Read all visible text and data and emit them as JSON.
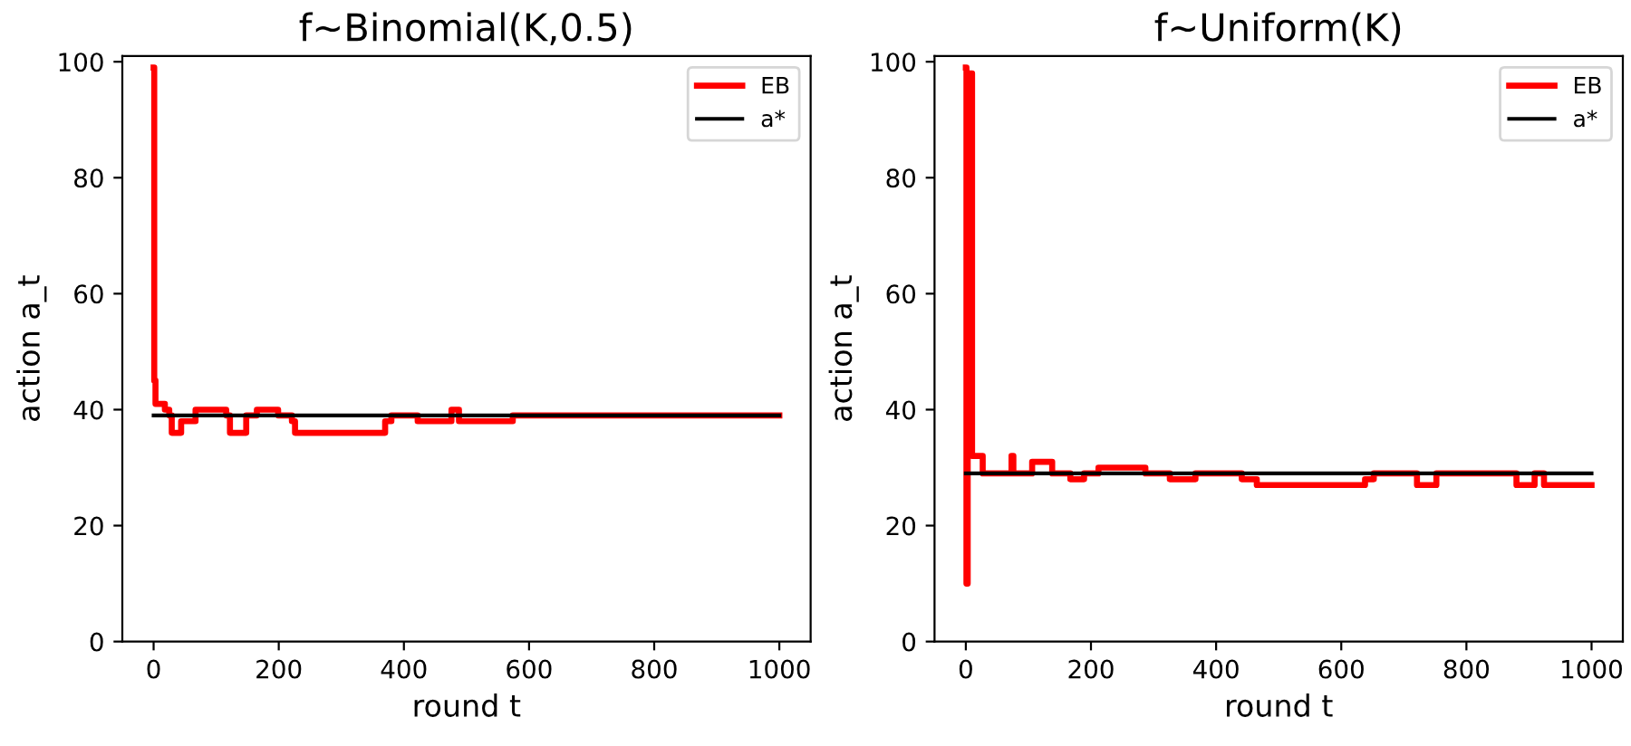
{
  "chart_data": [
    {
      "type": "step",
      "title": "f~Binomial(K,0.5)",
      "xlabel": "round t",
      "ylabel": "action a_t",
      "xlim": [
        -50,
        1050
      ],
      "ylim": [
        0,
        101
      ],
      "xticks": [
        0,
        200,
        400,
        600,
        800,
        1000
      ],
      "yticks": [
        0,
        20,
        40,
        60,
        80,
        100
      ],
      "legend": "top right",
      "grid": false,
      "series": [
        {
          "name": "EB",
          "color": "#ff0000",
          "x": [
            0,
            1,
            3,
            18,
            25,
            29,
            44,
            67,
            116,
            122,
            148,
            165,
            199,
            221,
            226,
            370,
            380,
            422,
            476,
            488,
            574,
            1000
          ],
          "values": [
            99,
            45,
            41,
            40,
            39,
            36,
            38,
            40,
            39,
            36,
            39,
            40,
            39,
            38,
            36,
            38,
            39,
            38,
            40,
            38,
            39,
            39
          ]
        },
        {
          "name": "a*",
          "color": "#000000",
          "type": "line",
          "x": [
            0,
            1000
          ],
          "values": [
            39,
            39
          ]
        }
      ]
    },
    {
      "type": "step",
      "title": "f~Uniform(K)",
      "xlabel": "round t",
      "ylabel": "action a_t",
      "xlim": [
        -50,
        1050
      ],
      "ylim": [
        0,
        101
      ],
      "xticks": [
        0,
        200,
        400,
        600,
        800,
        1000
      ],
      "yticks": [
        0,
        20,
        40,
        60,
        80,
        100
      ],
      "legend": "top right",
      "grid": false,
      "series": [
        {
          "name": "EB",
          "color": "#ff0000",
          "x": [
            0,
            1,
            3,
            6,
            10,
            27,
            73,
            76,
            106,
            138,
            167,
            189,
            212,
            287,
            326,
            367,
            441,
            465,
            638,
            652,
            721,
            752,
            880,
            909,
            924,
            1000
          ],
          "values": [
            99,
            10,
            40,
            98,
            32,
            29,
            32,
            29,
            31,
            29,
            28,
            29,
            30,
            29,
            28,
            29,
            28,
            27,
            28,
            29,
            27,
            29,
            27,
            29,
            27,
            27
          ]
        },
        {
          "name": "a*",
          "color": "#000000",
          "type": "line",
          "x": [
            0,
            1000
          ],
          "values": [
            29,
            29
          ]
        }
      ]
    }
  ]
}
